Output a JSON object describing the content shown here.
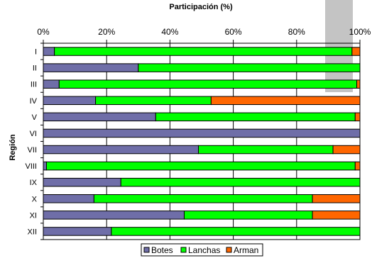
{
  "chart_data": {
    "type": "bar",
    "orientation": "horizontal",
    "stacked": "percent",
    "title": "Participación (%)",
    "xlabel": "",
    "ylabel": "Región",
    "xlim": [
      0,
      100
    ],
    "x_ticks": [
      "0%",
      "20%",
      "40%",
      "60%",
      "80%",
      "100%"
    ],
    "x_axis_position": "top",
    "grid": true,
    "legend_position": "bottom",
    "categories": [
      "I",
      "II",
      "III",
      "IV",
      "V",
      "VI",
      "VII",
      "VIII",
      "IX",
      "X",
      "XI",
      "XII"
    ],
    "series": [
      {
        "name": "Botes",
        "color": "#6f6ea8",
        "values": [
          3.5,
          30,
          5,
          16.5,
          35.5,
          100,
          49,
          1,
          24.5,
          16,
          44.5,
          21.5
        ]
      },
      {
        "name": "Lanchas",
        "color": "#00ff00",
        "values": [
          94,
          70,
          94,
          36.5,
          63,
          0,
          42.5,
          97.5,
          75.5,
          69,
          40.5,
          78.5
        ]
      },
      {
        "name": "Arman",
        "color": "#ff6600",
        "values": [
          2.5,
          0,
          1,
          47,
          1.5,
          0,
          8.5,
          1.5,
          0,
          15,
          15,
          0
        ]
      }
    ]
  }
}
